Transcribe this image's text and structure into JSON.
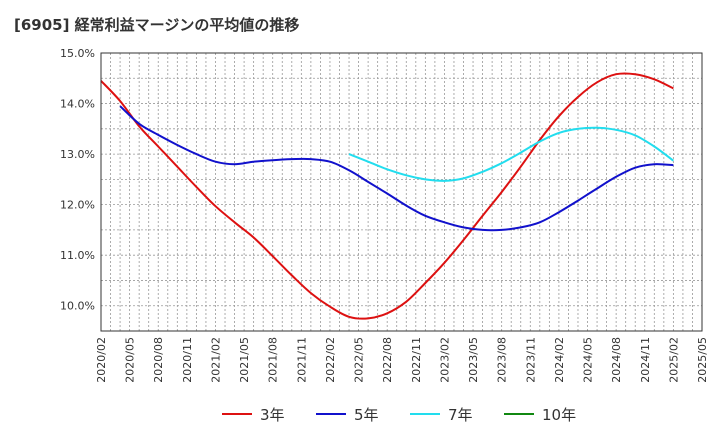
{
  "chart_data": {
    "type": "line",
    "title": "[6905]  経常利益マージンの平均値の推移",
    "xlabel": "",
    "ylabel": "",
    "ylim": [
      9.5,
      15.0
    ],
    "yticks": [
      10.0,
      11.0,
      12.0,
      13.0,
      14.0,
      15.0
    ],
    "ytick_labels": [
      "10.0%",
      "11.0%",
      "12.0%",
      "13.0%",
      "14.0%",
      "15.0%"
    ],
    "x_tick_labels": [
      "2020/02",
      "2020/05",
      "2020/08",
      "2020/11",
      "2021/02",
      "2021/05",
      "2021/08",
      "2021/11",
      "2022/02",
      "2022/05",
      "2022/08",
      "2022/11",
      "2023/02",
      "2023/05",
      "2023/08",
      "2023/11",
      "2024/02",
      "2024/05",
      "2024/08",
      "2024/11",
      "2025/02",
      "2025/05"
    ],
    "grid": true,
    "legend_position": "bottom",
    "series": [
      {
        "name": "3年",
        "color": "#dd1111",
        "points": [
          [
            "2020/02",
            14.45
          ],
          [
            "2020/04",
            14.05
          ],
          [
            "2020/06",
            13.55
          ],
          [
            "2020/08",
            13.15
          ],
          [
            "2020/10",
            12.75
          ],
          [
            "2020/12",
            12.35
          ],
          [
            "2021/02",
            11.97
          ],
          [
            "2021/04",
            11.65
          ],
          [
            "2021/06",
            11.35
          ],
          [
            "2021/08",
            10.98
          ],
          [
            "2021/10",
            10.6
          ],
          [
            "2021/12",
            10.25
          ],
          [
            "2022/02",
            9.98
          ],
          [
            "2022/04",
            9.78
          ],
          [
            "2022/06",
            9.75
          ],
          [
            "2022/08",
            9.85
          ],
          [
            "2022/10",
            10.08
          ],
          [
            "2022/12",
            10.45
          ],
          [
            "2023/02",
            10.85
          ],
          [
            "2023/04",
            11.3
          ],
          [
            "2023/06",
            11.78
          ],
          [
            "2023/08",
            12.25
          ],
          [
            "2023/10",
            12.75
          ],
          [
            "2023/12",
            13.28
          ],
          [
            "2024/02",
            13.75
          ],
          [
            "2024/04",
            14.13
          ],
          [
            "2024/06",
            14.42
          ],
          [
            "2024/08",
            14.58
          ],
          [
            "2024/10",
            14.58
          ],
          [
            "2024/12",
            14.48
          ],
          [
            "2025/02",
            14.3
          ]
        ]
      },
      {
        "name": "5年",
        "color": "#1111cc",
        "points": [
          [
            "2020/04",
            13.95
          ],
          [
            "2020/06",
            13.6
          ],
          [
            "2020/08",
            13.38
          ],
          [
            "2020/10",
            13.18
          ],
          [
            "2020/12",
            13.0
          ],
          [
            "2021/02",
            12.85
          ],
          [
            "2021/04",
            12.8
          ],
          [
            "2021/06",
            12.85
          ],
          [
            "2021/08",
            12.88
          ],
          [
            "2021/10",
            12.9
          ],
          [
            "2021/12",
            12.9
          ],
          [
            "2022/02",
            12.85
          ],
          [
            "2022/04",
            12.68
          ],
          [
            "2022/06",
            12.45
          ],
          [
            "2022/08",
            12.22
          ],
          [
            "2022/10",
            11.98
          ],
          [
            "2022/12",
            11.78
          ],
          [
            "2023/02",
            11.65
          ],
          [
            "2023/04",
            11.55
          ],
          [
            "2023/06",
            11.5
          ],
          [
            "2023/08",
            11.5
          ],
          [
            "2023/10",
            11.55
          ],
          [
            "2023/12",
            11.65
          ],
          [
            "2024/02",
            11.85
          ],
          [
            "2024/04",
            12.08
          ],
          [
            "2024/06",
            12.32
          ],
          [
            "2024/08",
            12.55
          ],
          [
            "2024/10",
            12.73
          ],
          [
            "2024/12",
            12.8
          ],
          [
            "2025/02",
            12.78
          ]
        ]
      },
      {
        "name": "7年",
        "color": "#22ddee",
        "points": [
          [
            "2022/04",
            13.0
          ],
          [
            "2022/06",
            12.85
          ],
          [
            "2022/08",
            12.7
          ],
          [
            "2022/10",
            12.58
          ],
          [
            "2022/12",
            12.5
          ],
          [
            "2023/02",
            12.47
          ],
          [
            "2023/04",
            12.52
          ],
          [
            "2023/06",
            12.65
          ],
          [
            "2023/08",
            12.82
          ],
          [
            "2023/10",
            13.03
          ],
          [
            "2023/12",
            13.25
          ],
          [
            "2024/02",
            13.42
          ],
          [
            "2024/04",
            13.5
          ],
          [
            "2024/06",
            13.52
          ],
          [
            "2024/08",
            13.48
          ],
          [
            "2024/10",
            13.37
          ],
          [
            "2024/12",
            13.15
          ],
          [
            "2025/02",
            12.87
          ]
        ]
      },
      {
        "name": "10年",
        "color": "#118811",
        "points": []
      }
    ]
  }
}
